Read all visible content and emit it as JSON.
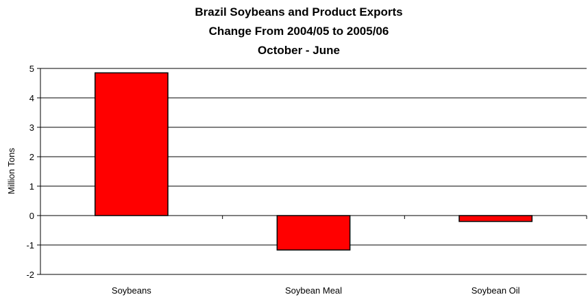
{
  "chart_data": {
    "type": "bar",
    "title_lines": [
      "Brazil Soybeans and Product Exports",
      "Change From 2004/05 to 2005/06",
      "October - June"
    ],
    "ylabel": "Million Tons",
    "xlabel": "",
    "categories": [
      "Soybeans",
      "Soybean Meal",
      "Soybean Oil"
    ],
    "values": [
      4.85,
      -1.17,
      -0.2
    ],
    "ylim": [
      -2,
      5
    ],
    "yticks": [
      5,
      4,
      3,
      2,
      1,
      0,
      -1,
      -2
    ],
    "grid": true,
    "legend": "none",
    "bar_color": "#ff0000",
    "bar_border_color": "#000000"
  }
}
